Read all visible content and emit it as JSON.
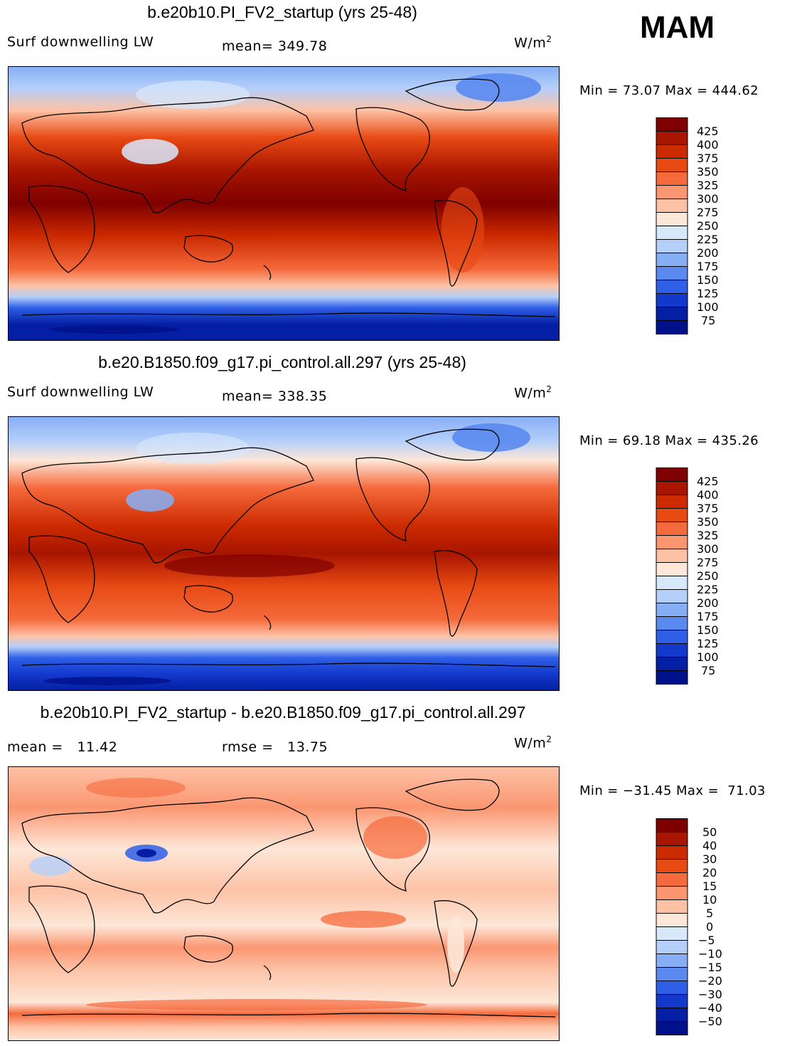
{
  "season": "MAM",
  "panels": [
    {
      "title": "b.e20b10.PI_FV2_startup (yrs 25-48)",
      "left_label": "Surf downwelling LW",
      "center_label": "mean= 349.78",
      "units": "W/m",
      "units_sup": "2",
      "minmax": "Min =  73.07 Max = 444.62",
      "colorbar_labels": [
        "425",
        "400",
        "375",
        "350",
        "325",
        "300",
        "275",
        "250",
        "225",
        "200",
        "175",
        "150",
        "125",
        "100",
        "75"
      ]
    },
    {
      "title": "b.e20.B1850.f09_g17.pi_control.all.297 (yrs 25-48)",
      "left_label": "Surf downwelling LW",
      "center_label": "mean= 338.35",
      "units": "W/m",
      "units_sup": "2",
      "minmax": "Min =  69.18 Max = 435.26",
      "colorbar_labels": [
        "425",
        "400",
        "375",
        "350",
        "325",
        "300",
        "275",
        "250",
        "225",
        "200",
        "175",
        "150",
        "125",
        "100",
        "75"
      ]
    },
    {
      "title": "b.e20b10.PI_FV2_startup - b.e20.B1850.f09_g17.pi_control.all.297",
      "left_label": "mean =   11.42",
      "center_label": "rmse =   13.75",
      "units": "W/m",
      "units_sup": "2",
      "minmax": "Min = −31.45 Max =  71.03",
      "colorbar_labels": [
        "50",
        "40",
        "30",
        "20",
        "15",
        "10",
        "5",
        "0",
        "−5",
        "−10",
        "−15",
        "−20",
        "−30",
        "−40",
        "−50"
      ]
    }
  ],
  "chart_data": [
    {
      "type": "heatmap",
      "title": "b.e20b10.PI_FV2_startup (yrs 25-48)",
      "variable": "Surf downwelling LW",
      "units": "W/m2",
      "mean": 349.78,
      "min": 73.07,
      "max": 444.62,
      "levels": [
        75,
        100,
        125,
        150,
        175,
        200,
        225,
        250,
        275,
        300,
        325,
        350,
        375,
        400,
        425
      ]
    },
    {
      "type": "heatmap",
      "title": "b.e20.B1850.f09_g17.pi_control.all.297 (yrs 25-48)",
      "variable": "Surf downwelling LW",
      "units": "W/m2",
      "mean": 338.35,
      "min": 69.18,
      "max": 435.26,
      "levels": [
        75,
        100,
        125,
        150,
        175,
        200,
        225,
        250,
        275,
        300,
        325,
        350,
        375,
        400,
        425
      ]
    },
    {
      "type": "heatmap",
      "title": "b.e20b10.PI_FV2_startup - b.e20.B1850.f09_g17.pi_control.all.297",
      "units": "W/m2",
      "mean": 11.42,
      "rmse": 13.75,
      "min": -31.45,
      "max": 71.03,
      "levels": [
        -50,
        -40,
        -30,
        -20,
        -15,
        -10,
        -5,
        0,
        5,
        10,
        15,
        20,
        30,
        40,
        50
      ]
    }
  ],
  "colors": {
    "colorbar_top_to_bottom": [
      "#7f0000",
      "#a81500",
      "#cc2a00",
      "#e84a14",
      "#f56a3c",
      "#fb9671",
      "#fdc2a6",
      "#fde7d8",
      "#d8e8fb",
      "#b4cffa",
      "#86aef5",
      "#5a89ef",
      "#2f5fe6",
      "#1238cc",
      "#041fa3",
      "#00108a"
    ]
  }
}
